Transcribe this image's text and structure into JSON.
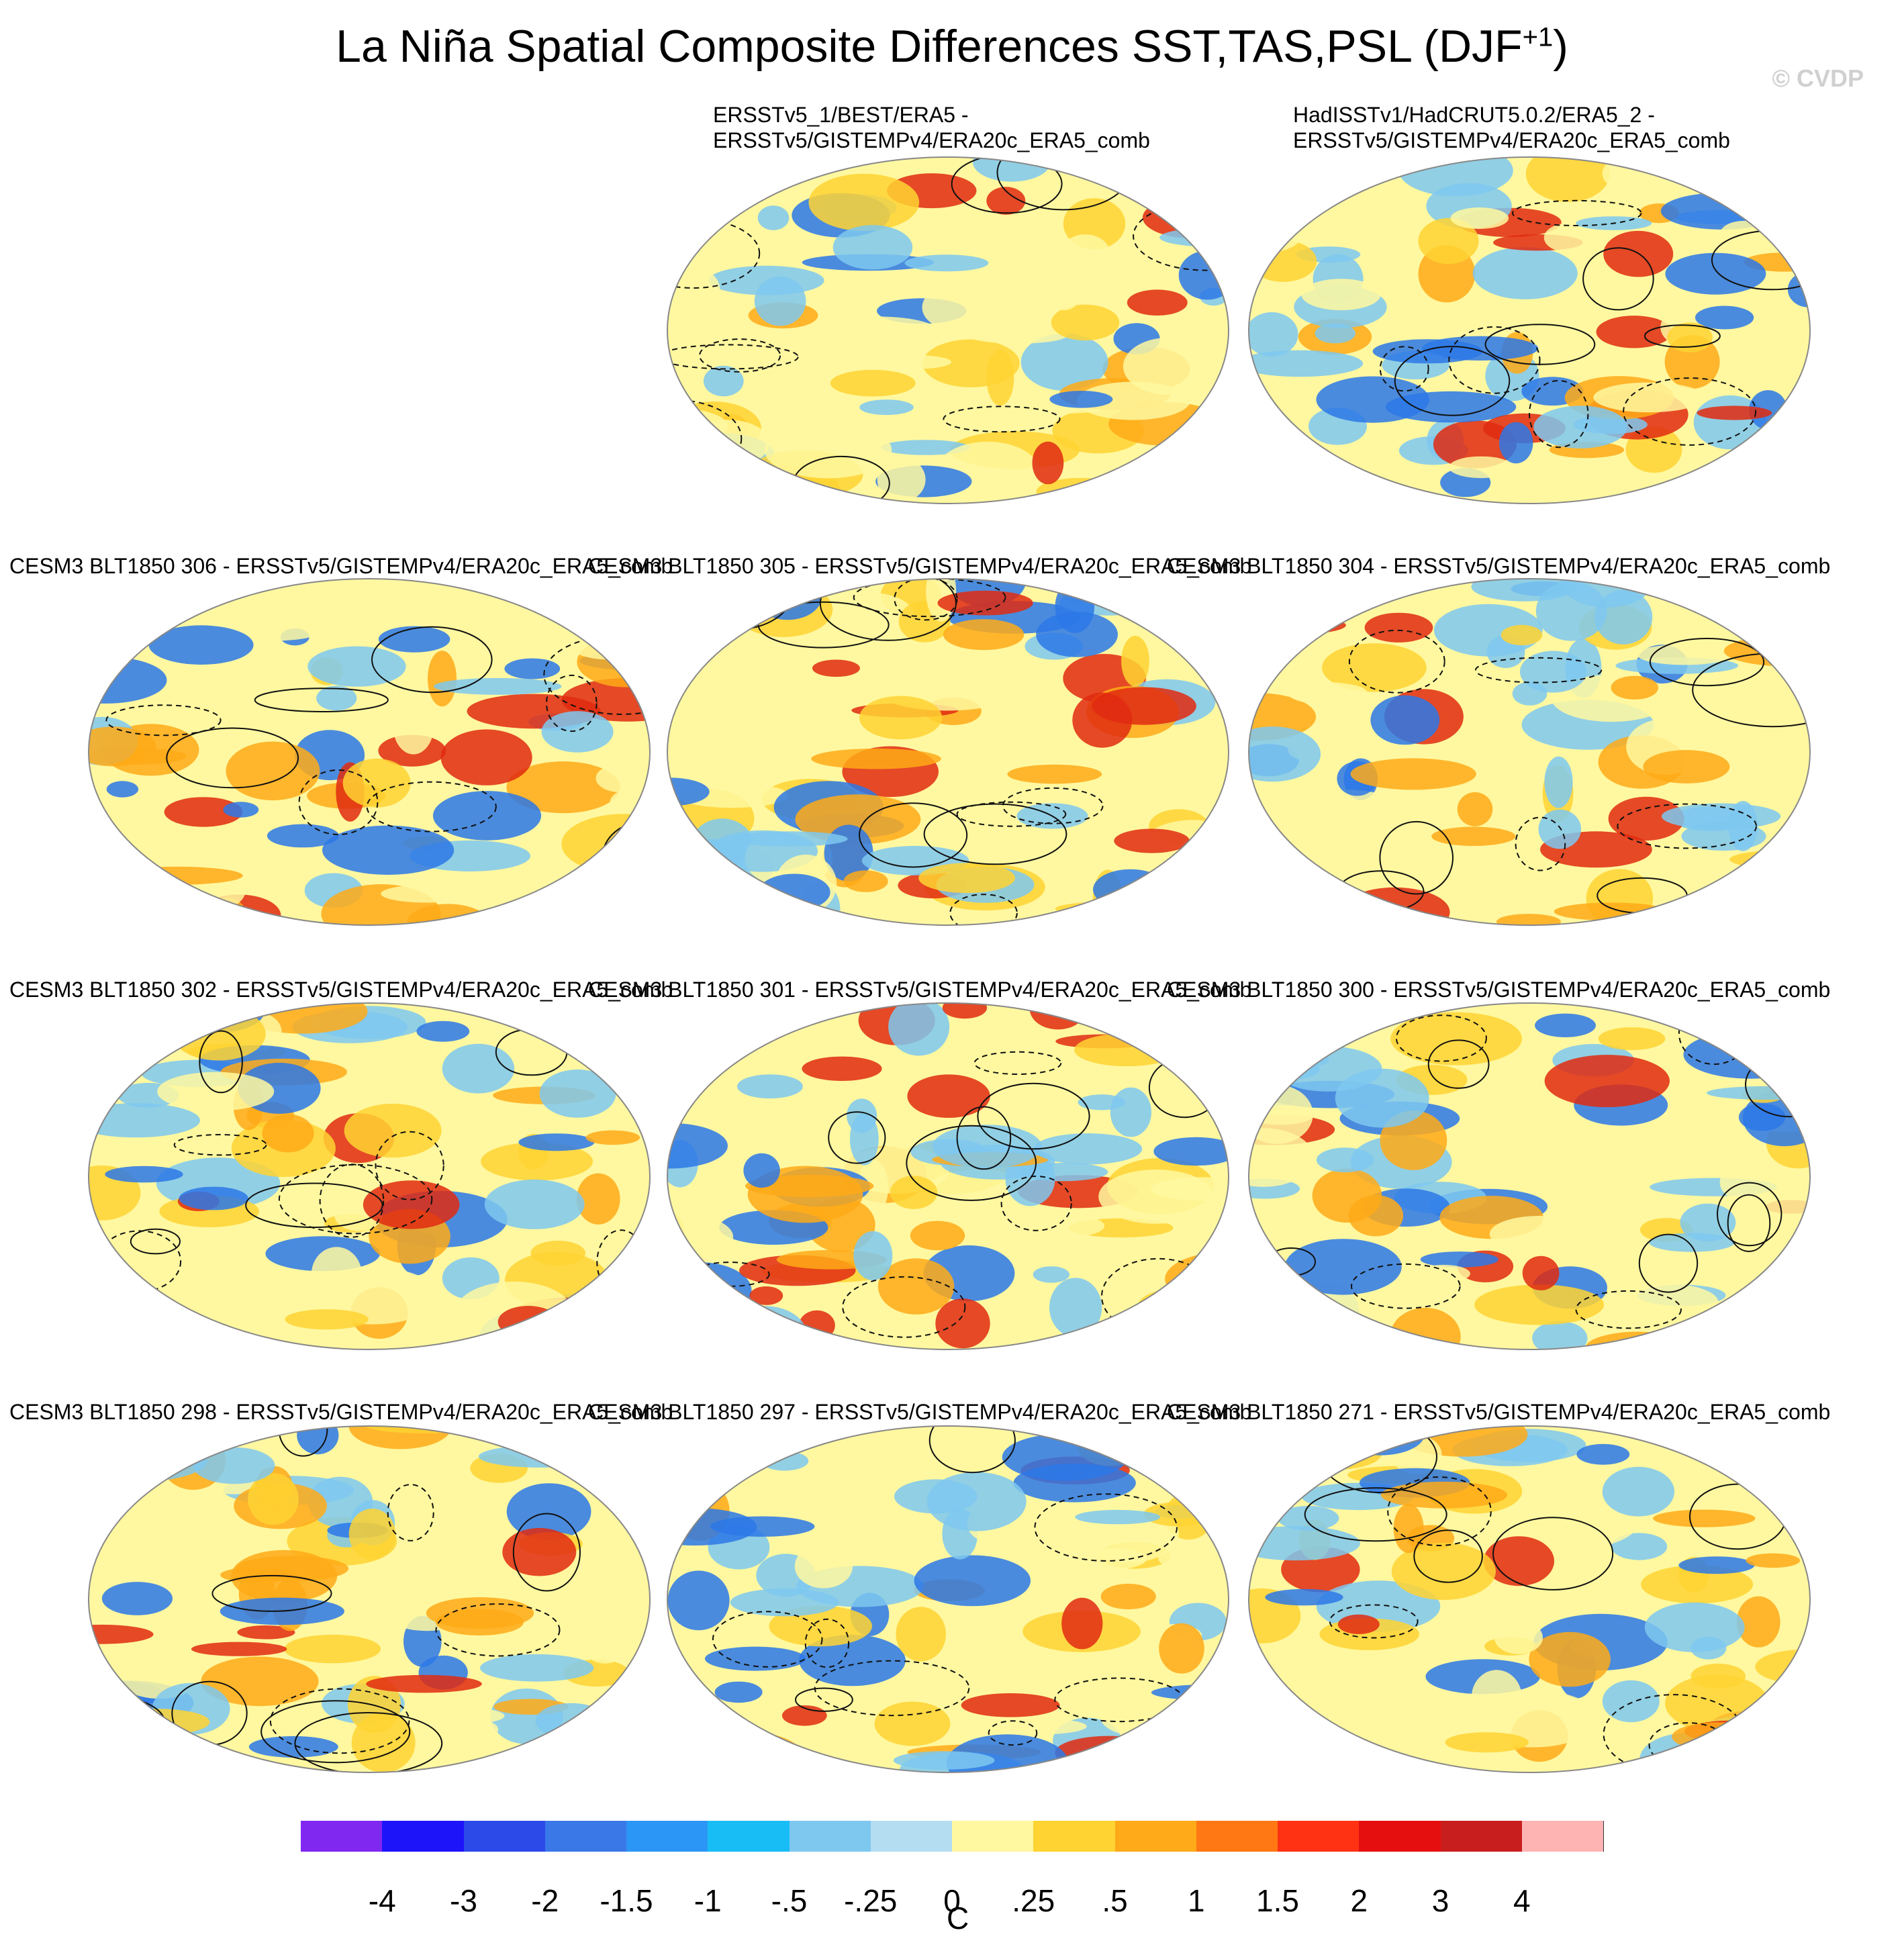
{
  "title": "La Niña Spatial Composite Differences SST,TAS,PSL (DJF",
  "title_sup": "+1",
  "title_end": ")",
  "watermark": "© CVDP",
  "panels": [
    {
      "id": "obs1",
      "label": "ERSSTv5_1/BEST/ERA5 -\nERSSTv5/GISTEMPv4/ERA20c_ERA5_comb"
    },
    {
      "id": "obs2",
      "label": "HadISSTv1/HadCRUT5.0.2/ERA5_2 -\nERSSTv5/GISTEMPv4/ERA20c_ERA5_comb"
    },
    {
      "id": "m306",
      "label": "CESM3 BLT1850 306 - ERSSTv5/GISTEMPv4/ERA20c_ERA5_comb"
    },
    {
      "id": "m305",
      "label": "CESM3 BLT1850 305 - ERSSTv5/GISTEMPv4/ERA20c_ERA5_comb"
    },
    {
      "id": "m304",
      "label": "CESM3 BLT1850 304 - ERSSTv5/GISTEMPv4/ERA20c_ERA5_comb"
    },
    {
      "id": "m302",
      "label": "CESM3 BLT1850 302 - ERSSTv5/GISTEMPv4/ERA20c_ERA5_comb"
    },
    {
      "id": "m301",
      "label": "CESM3 BLT1850 301 - ERSSTv5/GISTEMPv4/ERA20c_ERA5_comb"
    },
    {
      "id": "m300",
      "label": "CESM3 BLT1850 300 - ERSSTv5/GISTEMPv4/ERA20c_ERA5_comb"
    },
    {
      "id": "m298",
      "label": "CESM3 BLT1850 298 - ERSSTv5/GISTEMPv4/ERA20c_ERA5_comb"
    },
    {
      "id": "m297",
      "label": "CESM3 BLT1850 297 - ERSSTv5/GISTEMPv4/ERA20c_ERA5_comb"
    },
    {
      "id": "m271",
      "label": "CESM3 BLT1850 271 - ERSSTv5/GISTEMPv4/ERA20c_ERA5_comb"
    }
  ],
  "colorbar": {
    "units": "C",
    "labels": [
      "-4",
      "-3",
      "-2",
      "-1.5",
      "-1",
      "-.5",
      "-.25",
      "0",
      ".25",
      ".5",
      "1",
      "1.5",
      "2",
      "3",
      "4"
    ],
    "colors": [
      "#8027f0",
      "#1e14fa",
      "#2b4ae8",
      "#3a78e8",
      "#2b96f5",
      "#19bdf5",
      "#7ec8f0",
      "#b5ddf2",
      "#fff8a0",
      "#ffd432",
      "#ffaa18",
      "#ff7814",
      "#ff3214",
      "#e60f0f",
      "#c81e1e",
      "#ffb4b4"
    ]
  },
  "map_colors": {
    "ocean_base": "#b5ddf2",
    "warm_light": "#fff8a0",
    "warm": "#ffd432",
    "orange": "#ffaa18",
    "red": "#e02a10",
    "blue": "#7ec8f0",
    "deep_blue": "#2b78e8"
  }
}
